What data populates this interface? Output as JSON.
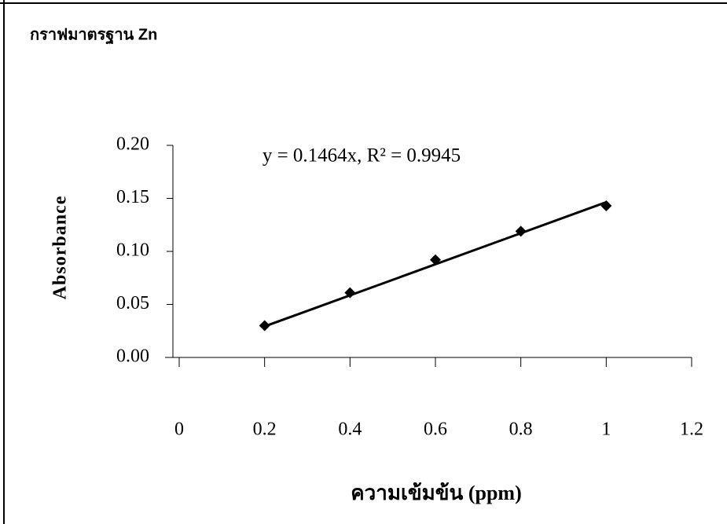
{
  "chart_data": {
    "type": "scatter",
    "title": "กราฟมาตรฐาน Zn",
    "x_label": "ความเข้มข้น (ppm)",
    "y_label": "Absorbance",
    "x": [
      0.2,
      0.4,
      0.6,
      0.8,
      1.0
    ],
    "series": [
      {
        "name": "Zn",
        "color": "#000000",
        "values": [
          0.03,
          0.061,
          0.092,
          0.119,
          0.143
        ]
      }
    ],
    "trendline": {
      "label": "y = 0.1464x, R² = 0.9945",
      "slope": 0.1464,
      "r2": 0.9945
    },
    "xlim": [
      0,
      1.2
    ],
    "xticks": [
      0,
      0.2,
      0.4,
      0.6,
      0.8,
      1,
      1.2
    ],
    "ylim": [
      0,
      0.2
    ],
    "yticks": [
      {
        "value": 0,
        "label": "0.00"
      },
      0.05,
      {
        "value": 0.1,
        "label": "0.10"
      },
      0.15,
      {
        "value": 0.2,
        "label": "0.20"
      }
    ]
  }
}
